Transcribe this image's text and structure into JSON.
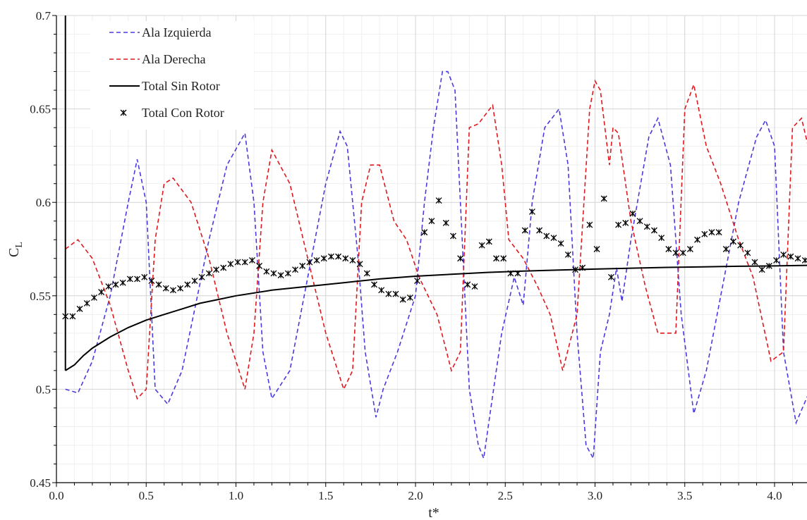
{
  "chart_data": {
    "type": "line",
    "xlabel": "t*",
    "ylabel": "C",
    "ylabel_sub": "L",
    "xlim": [
      0.0,
      4.2
    ],
    "ylim": [
      0.45,
      0.7
    ],
    "x_ticks": [
      "0.0",
      "0.5",
      "1.0",
      "1.5",
      "2.0",
      "2.5",
      "3.0",
      "3.5",
      "4.0"
    ],
    "y_ticks": [
      "0.45",
      "0.5",
      "0.55",
      "0.6",
      "0.65",
      "0.7"
    ],
    "grid": true,
    "legend_position": "top-left",
    "series": [
      {
        "name": "Ala Izquierda",
        "style": "dashed",
        "color": "#4a3adf",
        "x": [
          0.05,
          0.12,
          0.2,
          0.3,
          0.4,
          0.45,
          0.5,
          0.55,
          0.62,
          0.7,
          0.85,
          0.95,
          1.05,
          1.1,
          1.15,
          1.2,
          1.3,
          1.4,
          1.5,
          1.58,
          1.62,
          1.68,
          1.72,
          1.78,
          1.82,
          1.9,
          2.0,
          2.05,
          2.1,
          2.15,
          2.18,
          2.22,
          2.26,
          2.3,
          2.35,
          2.38,
          2.42,
          2.48,
          2.55,
          2.6,
          2.65,
          2.72,
          2.8,
          2.85,
          2.9,
          2.95,
          2.99,
          3.03,
          3.08,
          3.12,
          3.15,
          3.2,
          3.3,
          3.35,
          3.42,
          3.48,
          3.55,
          3.62,
          3.7,
          3.8,
          3.9,
          3.95,
          4.0,
          4.05,
          4.12,
          4.2
        ],
        "y": [
          0.5,
          0.498,
          0.515,
          0.55,
          0.6,
          0.623,
          0.6,
          0.5,
          0.492,
          0.51,
          0.58,
          0.62,
          0.637,
          0.6,
          0.52,
          0.495,
          0.51,
          0.56,
          0.61,
          0.638,
          0.63,
          0.57,
          0.52,
          0.485,
          0.5,
          0.52,
          0.55,
          0.6,
          0.64,
          0.67,
          0.67,
          0.66,
          0.58,
          0.5,
          0.47,
          0.463,
          0.49,
          0.53,
          0.56,
          0.545,
          0.6,
          0.64,
          0.65,
          0.62,
          0.53,
          0.47,
          0.463,
          0.52,
          0.54,
          0.565,
          0.547,
          0.58,
          0.635,
          0.645,
          0.62,
          0.54,
          0.487,
          0.51,
          0.55,
          0.6,
          0.635,
          0.644,
          0.63,
          0.52,
          0.482,
          0.5
        ]
      },
      {
        "name": "Ala Derecha",
        "style": "dashed",
        "color": "#e0191e",
        "x": [
          0.05,
          0.12,
          0.2,
          0.3,
          0.4,
          0.45,
          0.5,
          0.55,
          0.6,
          0.65,
          0.75,
          0.85,
          0.95,
          1.05,
          1.1,
          1.15,
          1.2,
          1.3,
          1.4,
          1.5,
          1.6,
          1.65,
          1.7,
          1.75,
          1.8,
          1.88,
          1.95,
          2.02,
          2.12,
          2.2,
          2.25,
          2.3,
          2.35,
          2.43,
          2.48,
          2.52,
          2.6,
          2.68,
          2.75,
          2.82,
          2.9,
          2.97,
          3.0,
          3.03,
          3.08,
          3.1,
          3.13,
          3.2,
          3.28,
          3.35,
          3.45,
          3.5,
          3.55,
          3.62,
          3.7,
          3.8,
          3.88,
          3.98,
          4.05,
          4.1,
          4.15,
          4.2
        ],
        "y": [
          0.575,
          0.58,
          0.57,
          0.545,
          0.51,
          0.495,
          0.5,
          0.58,
          0.61,
          0.613,
          0.6,
          0.57,
          0.53,
          0.5,
          0.53,
          0.6,
          0.628,
          0.61,
          0.57,
          0.53,
          0.5,
          0.51,
          0.6,
          0.62,
          0.62,
          0.59,
          0.58,
          0.56,
          0.54,
          0.51,
          0.52,
          0.64,
          0.642,
          0.652,
          0.62,
          0.58,
          0.57,
          0.555,
          0.54,
          0.51,
          0.54,
          0.65,
          0.665,
          0.66,
          0.62,
          0.64,
          0.637,
          0.59,
          0.555,
          0.53,
          0.53,
          0.65,
          0.663,
          0.63,
          0.61,
          0.58,
          0.56,
          0.515,
          0.52,
          0.64,
          0.645,
          0.625
        ]
      },
      {
        "name": "Total Sin Rotor",
        "style": "solid",
        "color": "#000000",
        "x": [
          0.05,
          0.1,
          0.15,
          0.2,
          0.3,
          0.4,
          0.5,
          0.6,
          0.7,
          0.8,
          0.9,
          1.0,
          1.2,
          1.4,
          1.6,
          1.8,
          2.0,
          2.2,
          2.4,
          2.6,
          2.8,
          3.0,
          3.2,
          3.4,
          3.6,
          3.8,
          4.0,
          4.2
        ],
        "y": [
          0.51,
          0.513,
          0.518,
          0.522,
          0.528,
          0.533,
          0.537,
          0.54,
          0.543,
          0.546,
          0.548,
          0.55,
          0.553,
          0.555,
          0.557,
          0.559,
          0.5605,
          0.5615,
          0.5625,
          0.5632,
          0.5638,
          0.5643,
          0.5648,
          0.5652,
          0.5655,
          0.5658,
          0.566,
          0.5663
        ]
      },
      {
        "name": "Total Con Rotor",
        "style": "markers",
        "color": "#000000",
        "x": [
          0.05,
          0.09,
          0.13,
          0.17,
          0.21,
          0.25,
          0.29,
          0.33,
          0.37,
          0.41,
          0.45,
          0.49,
          0.53,
          0.57,
          0.61,
          0.65,
          0.69,
          0.73,
          0.77,
          0.81,
          0.85,
          0.89,
          0.93,
          0.97,
          1.01,
          1.05,
          1.09,
          1.13,
          1.17,
          1.21,
          1.25,
          1.29,
          1.33,
          1.37,
          1.41,
          1.45,
          1.49,
          1.53,
          1.57,
          1.61,
          1.65,
          1.69,
          1.73,
          1.77,
          1.81,
          1.85,
          1.89,
          1.93,
          1.97,
          2.01,
          2.05,
          2.09,
          2.13,
          2.17,
          2.21,
          2.25,
          2.29,
          2.33,
          2.37,
          2.41,
          2.45,
          2.49,
          2.53,
          2.57,
          2.61,
          2.65,
          2.69,
          2.73,
          2.77,
          2.81,
          2.85,
          2.89,
          2.93,
          2.97,
          3.01,
          3.05,
          3.09,
          3.13,
          3.17,
          3.21,
          3.25,
          3.29,
          3.33,
          3.37,
          3.41,
          3.45,
          3.49,
          3.53,
          3.57,
          3.61,
          3.65,
          3.69,
          3.73,
          3.77,
          3.81,
          3.85,
          3.89,
          3.93,
          3.97,
          4.01,
          4.05,
          4.09,
          4.13,
          4.17
        ],
        "y": [
          0.539,
          0.539,
          0.543,
          0.546,
          0.549,
          0.552,
          0.555,
          0.556,
          0.557,
          0.559,
          0.559,
          0.56,
          0.558,
          0.556,
          0.554,
          0.553,
          0.554,
          0.556,
          0.558,
          0.56,
          0.562,
          0.564,
          0.565,
          0.567,
          0.568,
          0.568,
          0.569,
          0.566,
          0.563,
          0.562,
          0.561,
          0.562,
          0.564,
          0.566,
          0.568,
          0.569,
          0.57,
          0.571,
          0.571,
          0.57,
          0.569,
          0.567,
          0.562,
          0.556,
          0.553,
          0.551,
          0.551,
          0.548,
          0.549,
          0.558,
          0.584,
          0.59,
          0.601,
          0.589,
          0.582,
          0.57,
          0.556,
          0.555,
          0.577,
          0.579,
          0.57,
          0.57,
          0.562,
          0.562,
          0.585,
          0.595,
          0.585,
          0.582,
          0.581,
          0.578,
          0.572,
          0.564,
          0.565,
          0.588,
          0.575,
          0.602,
          0.56,
          0.588,
          0.589,
          0.594,
          0.59,
          0.587,
          0.585,
          0.581,
          0.575,
          0.573,
          0.573,
          0.575,
          0.58,
          0.583,
          0.584,
          0.584,
          0.575,
          0.579,
          0.577,
          0.573,
          0.568,
          0.564,
          0.566,
          0.569,
          0.572,
          0.571,
          0.57,
          0.569
        ]
      }
    ]
  }
}
